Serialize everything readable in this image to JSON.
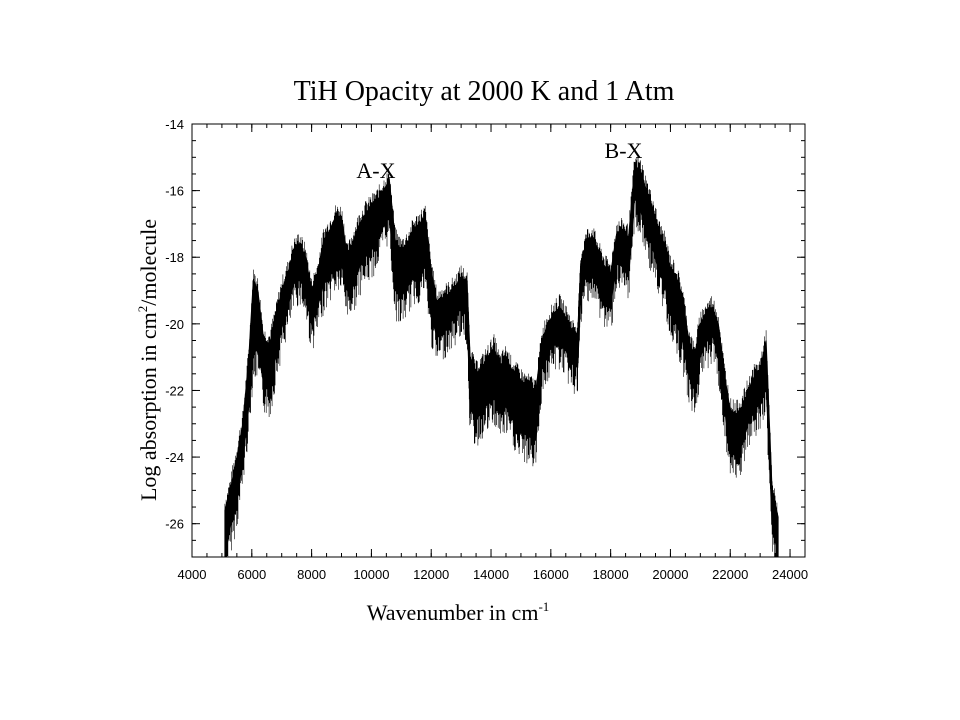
{
  "chart_data": {
    "type": "line",
    "title": "TiH Opacity at 2000 K and 1 Atm",
    "xlabel": "Wavenumber in cm",
    "xlabel_sup": "-1",
    "ylabel_pre": "Log absorption in cm",
    "ylabel_sup": "2",
    "ylabel_post": "/molecule",
    "xlim": [
      4000,
      24500
    ],
    "ylim": [
      -27,
      -14
    ],
    "xticks": [
      4000,
      6000,
      8000,
      10000,
      12000,
      14000,
      16000,
      18000,
      20000,
      22000,
      24000
    ],
    "yticks": [
      -14,
      -16,
      -18,
      -20,
      -22,
      -24,
      -26
    ],
    "grid": false,
    "annotations": [
      {
        "text": "A-X",
        "x": 10500,
        "y": -15.5
      },
      {
        "text": "B-X",
        "x": 18800,
        "y": -14.9
      }
    ],
    "series": [
      {
        "x": [
          5100,
          5300,
          5500,
          5700,
          5900,
          6050,
          6200,
          6400,
          6600,
          6800,
          7000,
          7200,
          7400,
          7600,
          7800,
          8000,
          8200,
          8400,
          8600,
          8800,
          9000,
          9200,
          9400,
          9600,
          9800,
          10000,
          10200,
          10400,
          10600,
          10800,
          11000,
          11200,
          11400,
          11600,
          11800,
          12000,
          12200,
          12400,
          12600,
          12800,
          13000,
          13200,
          13300,
          13500,
          13700,
          13900,
          14100,
          14300,
          14500,
          14700,
          14900,
          15100,
          15300,
          15500,
          15700,
          15900,
          16100,
          16300,
          16500,
          16700,
          16900,
          17000,
          17200,
          17400,
          17600,
          17800,
          18000,
          18200,
          18400,
          18600,
          18800,
          19000,
          19200,
          19400,
          19600,
          19800,
          20000,
          20200,
          20400,
          20600,
          20800,
          21000,
          21200,
          21400,
          21600,
          21800,
          22000,
          22200,
          22400,
          22600,
          22800,
          23000,
          23200,
          23400,
          23600
        ],
        "y_upper": [
          -25.6,
          -24.9,
          -24.0,
          -23.0,
          -21.0,
          -18.7,
          -19.0,
          -20.5,
          -20.6,
          -19.8,
          -19.0,
          -18.5,
          -17.8,
          -17.6,
          -18.0,
          -19.0,
          -18.5,
          -17.5,
          -17.2,
          -16.8,
          -16.8,
          -18.0,
          -17.5,
          -17.0,
          -16.7,
          -16.5,
          -16.3,
          -16.0,
          -15.7,
          -17.5,
          -17.8,
          -17.6,
          -17.2,
          -17.0,
          -16.8,
          -18.4,
          -19.4,
          -19.2,
          -19.1,
          -18.9,
          -18.6,
          -18.8,
          -21.0,
          -21.5,
          -21.3,
          -21.0,
          -20.7,
          -21.3,
          -21.0,
          -21.4,
          -21.6,
          -21.8,
          -21.9,
          -22.0,
          -20.5,
          -20.0,
          -19.7,
          -19.5,
          -19.8,
          -20.2,
          -20.3,
          -18.2,
          -17.5,
          -17.4,
          -17.9,
          -18.3,
          -18.5,
          -17.3,
          -17.2,
          -17.4,
          -15.3,
          -15.4,
          -16.0,
          -16.5,
          -17.2,
          -17.6,
          -18.3,
          -18.6,
          -19.2,
          -20.4,
          -21.0,
          -20.0,
          -19.7,
          -19.5,
          -20.0,
          -21.5,
          -22.6,
          -22.7,
          -22.5,
          -22.0,
          -21.6,
          -21.4,
          -20.5,
          -25.0,
          -25.8
        ],
        "y_lower": [
          -27.0,
          -26.0,
          -25.3,
          -24.1,
          -22.5,
          -20.8,
          -20.8,
          -21.8,
          -22.0,
          -21.0,
          -20.1,
          -19.5,
          -18.8,
          -18.5,
          -19.0,
          -20.0,
          -19.5,
          -18.8,
          -18.5,
          -18.2,
          -18.2,
          -19.0,
          -18.8,
          -18.3,
          -18.0,
          -17.8,
          -17.5,
          -17.0,
          -16.7,
          -19.0,
          -19.2,
          -18.9,
          -18.6,
          -18.5,
          -18.2,
          -19.8,
          -20.4,
          -20.2,
          -20.0,
          -19.8,
          -19.5,
          -19.8,
          -22.5,
          -22.9,
          -22.6,
          -22.4,
          -22.2,
          -22.6,
          -22.5,
          -22.8,
          -23.2,
          -23.3,
          -23.4,
          -23.5,
          -21.3,
          -20.9,
          -20.6,
          -20.5,
          -20.8,
          -21.2,
          -21.3,
          -19.2,
          -18.4,
          -18.5,
          -18.9,
          -19.3,
          -19.5,
          -18.1,
          -18.3,
          -18.6,
          -16.2,
          -16.6,
          -17.2,
          -17.7,
          -18.4,
          -18.8,
          -19.5,
          -20.0,
          -20.5,
          -21.5,
          -22.0,
          -21.0,
          -20.5,
          -20.3,
          -21.0,
          -22.5,
          -23.8,
          -24.0,
          -23.6,
          -23.0,
          -22.6,
          -22.4,
          -21.8,
          -26.0,
          -27.0
        ]
      }
    ]
  }
}
